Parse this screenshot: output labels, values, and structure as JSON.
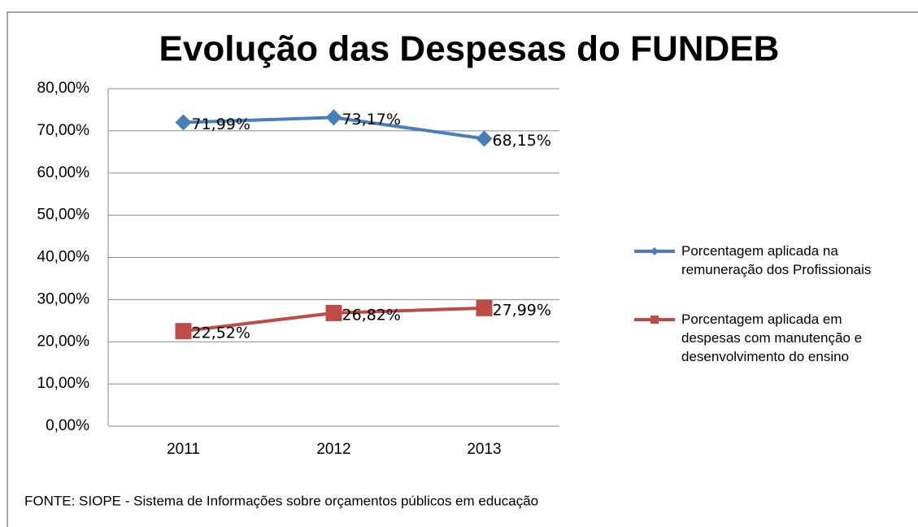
{
  "chart_data": {
    "type": "line",
    "title": "Evolução das Despesas do FUNDEB",
    "categories": [
      "2011",
      "2012",
      "2013"
    ],
    "series": [
      {
        "name": "Porcentagem aplicada na remuneração dos Profissionais",
        "color": "#4a7ebb",
        "marker": "diamond",
        "values": [
          71.99,
          73.17,
          68.15
        ],
        "value_labels": [
          "71,99%",
          "73,17%",
          "68,15%"
        ]
      },
      {
        "name": "Porcentagem aplicada em despesas com manutenção e desenvolvimento do ensino",
        "color": "#be4b48",
        "marker": "square",
        "values": [
          22.52,
          26.82,
          27.99
        ],
        "value_labels": [
          "22,52%",
          "26,82%",
          "27,99%"
        ]
      }
    ],
    "ylim": [
      0,
      80
    ],
    "yticks": [
      {
        "value": 0,
        "label": "0,00%"
      },
      {
        "value": 10,
        "label": "10,00%"
      },
      {
        "value": 20,
        "label": "20,00%"
      },
      {
        "value": 30,
        "label": "30,00%"
      },
      {
        "value": 40,
        "label": "40,00%"
      },
      {
        "value": 50,
        "label": "50,00%"
      },
      {
        "value": 60,
        "label": "60,00%"
      },
      {
        "value": 70,
        "label": "70,00%"
      },
      {
        "value": 80,
        "label": "80,00%"
      }
    ],
    "grid": true,
    "legend": "right",
    "source": "FONTE: SIOPE - Sistema de Informações sobre orçamentos públicos em educação"
  }
}
